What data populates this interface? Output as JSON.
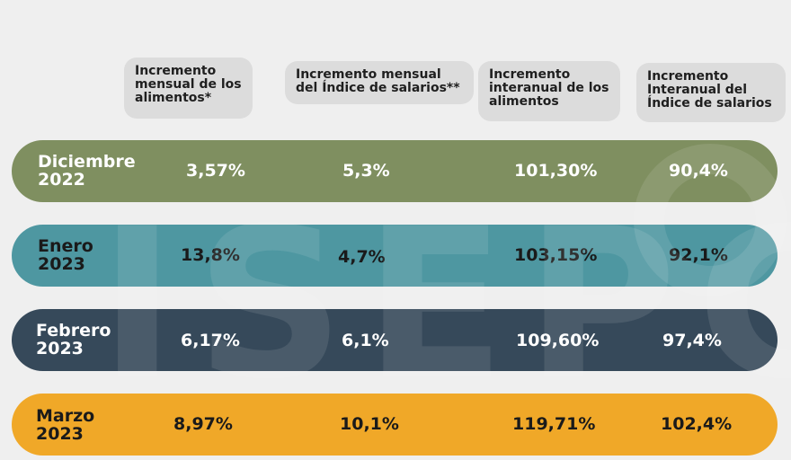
{
  "chart_data": {
    "type": "table",
    "columns": [
      "Incremento mensual de los alimentos*",
      "Incremento mensual del Índice de salarios**",
      "Incremento interanual de los alimentos",
      "Incremento Interanual del Índice de salarios"
    ],
    "header_lines": [
      [
        "Incremento",
        "mensual de los",
        "alimentos*"
      ],
      [
        "Incremento mensual",
        "del Índice de salarios**"
      ],
      [
        "Incremento",
        "interanual de los",
        "alimentos"
      ],
      [
        "Incremento",
        "Interanual del",
        "Índice de salarios"
      ]
    ],
    "rows": [
      {
        "label_line1": "Diciembre",
        "label_line2": "2022",
        "values": [
          "3,57%",
          "5,3%",
          "101,30%",
          "90,4%"
        ],
        "color": "#7f8f60"
      },
      {
        "label_line1": "Enero",
        "label_line2": "2023",
        "values": [
          "13,8%",
          "4,7%",
          "103,15%",
          "92,1%"
        ],
        "color": "#4e97a1"
      },
      {
        "label_line1": "Febrero",
        "label_line2": "2023",
        "values": [
          "6,17%",
          "6,1%",
          "109,60%",
          "97,4%"
        ],
        "color": "#36495a"
      },
      {
        "label_line1": "Marzo",
        "label_line2": "2023",
        "values": [
          "8,97%",
          "10,1%",
          "119,71%",
          "102,4%"
        ],
        "color": "#f0a828"
      }
    ],
    "watermark": "ISEPCi"
  }
}
